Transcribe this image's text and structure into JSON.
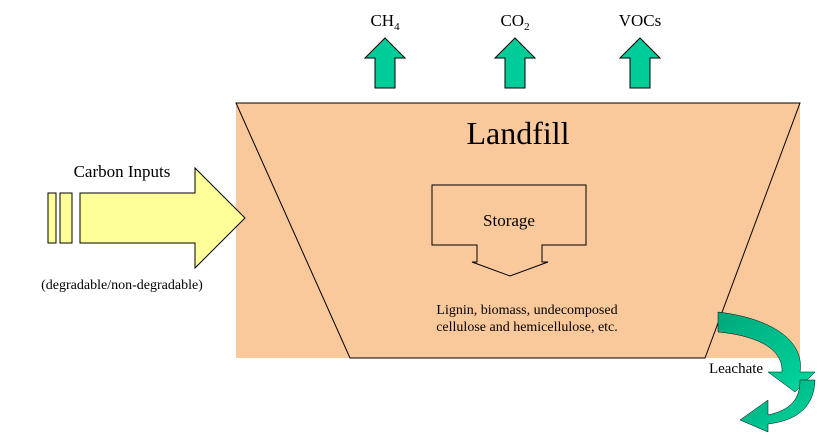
{
  "gases": [
    {
      "base": "CH",
      "sub": "4"
    },
    {
      "base": "CO",
      "sub": "2"
    },
    {
      "base": "VOCs"
    }
  ],
  "landfill": "Landfill",
  "inputs": {
    "title": "Carbon Inputs",
    "note": "(degradable/non-degradable)"
  },
  "storage": "Storage",
  "contents": [
    "Lignin, biomass, undecomposed",
    "cellulose and hemicellulose, etc."
  ],
  "leachate": "Leachate"
}
